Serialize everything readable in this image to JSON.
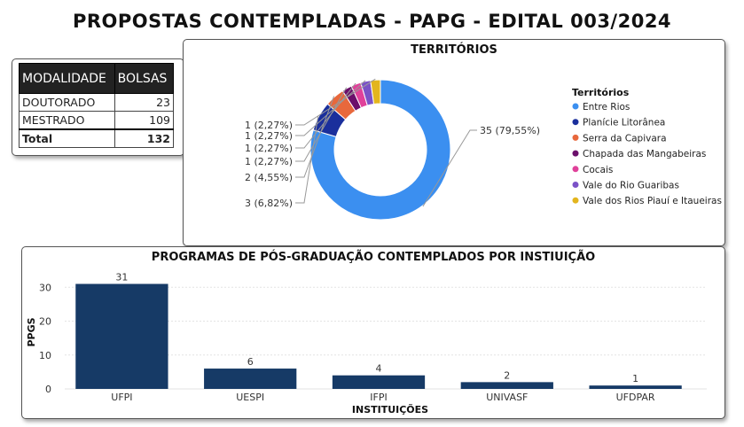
{
  "title": "PROPOSTAS CONTEMPLADAS - PAPG - EDITAL 003/2024",
  "modalidade_table": {
    "headers": [
      "MODALIDADE",
      "BOLSAS"
    ],
    "rows": [
      {
        "label": "DOUTORADO",
        "value": "23"
      },
      {
        "label": "MESTRADO",
        "value": "109"
      }
    ],
    "total_label": "Total",
    "total_value": "132"
  },
  "chart_data": [
    {
      "type": "pie",
      "variant": "donut",
      "title": "TERRITÓRIOS",
      "legend_title": "Territórios",
      "legend_position": "right",
      "slices": [
        {
          "label": "Entre Rios",
          "value": 35,
          "display": "35 (79,55%)",
          "color": "#3b8ff0"
        },
        {
          "label": "Planície Litorânea",
          "value": 3,
          "display": "3 (6,82%)",
          "color": "#1a2f9c"
        },
        {
          "label": "Serra da Capivara",
          "value": 2,
          "display": "2 (4,55%)",
          "color": "#e8683c"
        },
        {
          "label": "Chapada das Mangabeiras",
          "value": 1,
          "display": "1 (2,27%)",
          "color": "#6b0f6b"
        },
        {
          "label": "Cocais",
          "value": 1,
          "display": "1 (2,27%)",
          "color": "#e0419a"
        },
        {
          "label": "Vale do Rio Guaribas",
          "value": 1,
          "display": "1 (2,27%)",
          "color": "#7b52c7"
        },
        {
          "label": "Vale dos Rios Piauí e Itaueiras",
          "value": 1,
          "display": "1 (2,27%)",
          "color": "#e3b51e"
        }
      ]
    },
    {
      "type": "bar",
      "title": "PROGRAMAS DE PÓS-GRADUAÇÃO CONTEMPLADOS POR INSTIUIÇÃO",
      "xlabel": "INSTITUIÇÕES",
      "ylabel": "PPGS",
      "categories": [
        "UFPI",
        "UESPI",
        "IFPI",
        "UNIVASF",
        "UFDPAR"
      ],
      "values": [
        31,
        6,
        4,
        2,
        1
      ],
      "ylim": [
        0,
        34
      ],
      "yticks": [
        0,
        10,
        20,
        30
      ],
      "grid": true,
      "color": "#163a66"
    }
  ]
}
